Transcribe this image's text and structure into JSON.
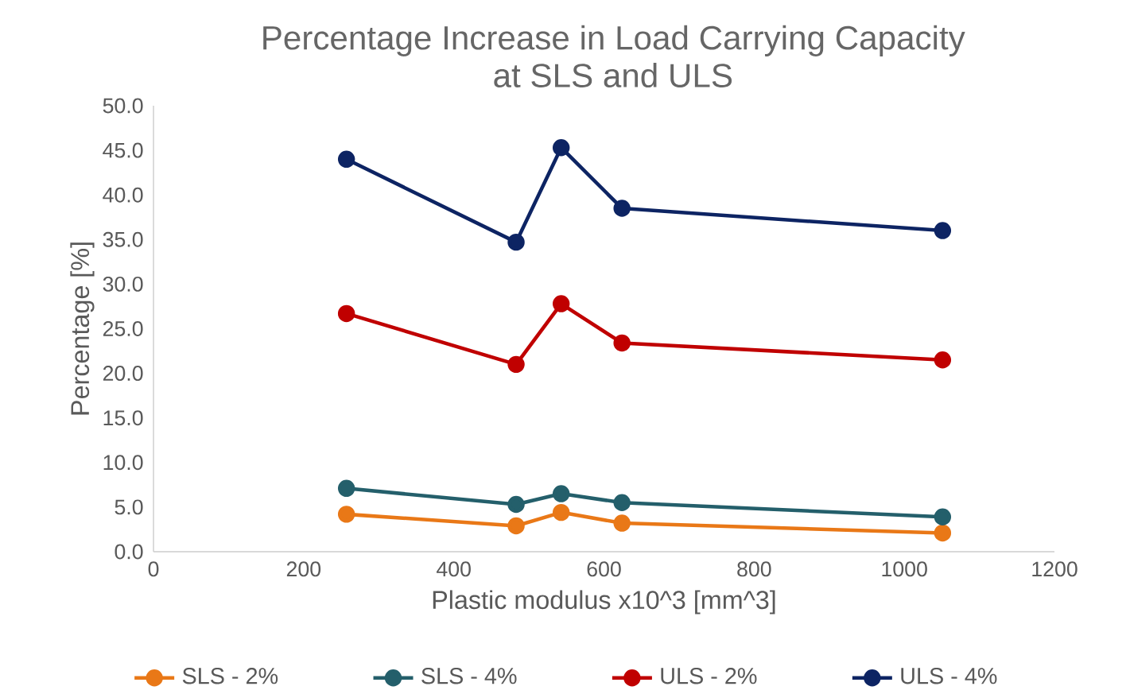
{
  "chart_data": {
    "type": "line",
    "title": "Percentage Increase in Load Carrying Capacity\nat SLS and ULS",
    "xlabel": "Plastic modulus x10^3 [mm^3]",
    "ylabel": "Percentage [%]",
    "x": [
      257,
      483,
      543,
      624,
      1051
    ],
    "series": [
      {
        "name": "SLS - 2%",
        "color": "#e97817",
        "values": [
          4.2,
          2.9,
          4.4,
          3.2,
          2.1
        ]
      },
      {
        "name": "SLS - 4%",
        "color": "#245f6b",
        "values": [
          7.1,
          5.3,
          6.5,
          5.5,
          3.9
        ]
      },
      {
        "name": "ULS - 2%",
        "color": "#c00000",
        "values": [
          26.7,
          21.0,
          27.8,
          23.4,
          21.5
        ]
      },
      {
        "name": "ULS - 4%",
        "color": "#0d2463",
        "values": [
          44.0,
          34.7,
          45.3,
          38.5,
          36.0
        ]
      }
    ],
    "xlim": [
      0,
      1200
    ],
    "xticks": [
      0,
      200,
      400,
      600,
      800,
      1000,
      1200
    ],
    "ylim": [
      0,
      50
    ],
    "yticks": [
      {
        "value": 0,
        "label": "0.0"
      },
      {
        "value": 5,
        "label": "5.0"
      },
      {
        "value": 10,
        "label": "10.0"
      },
      {
        "value": 15,
        "label": "15.0"
      },
      {
        "value": 20,
        "label": "20.0"
      },
      {
        "value": 25,
        "label": "25.0"
      },
      {
        "value": 30,
        "label": "30.0"
      },
      {
        "value": 35,
        "label": "35.0"
      },
      {
        "value": 40,
        "label": "40.0"
      },
      {
        "value": 45,
        "label": "45.0"
      },
      {
        "value": 50,
        "label": "50.0"
      }
    ],
    "grid": false,
    "legend": "bottom",
    "marker": "circle",
    "line_style": "solid"
  }
}
